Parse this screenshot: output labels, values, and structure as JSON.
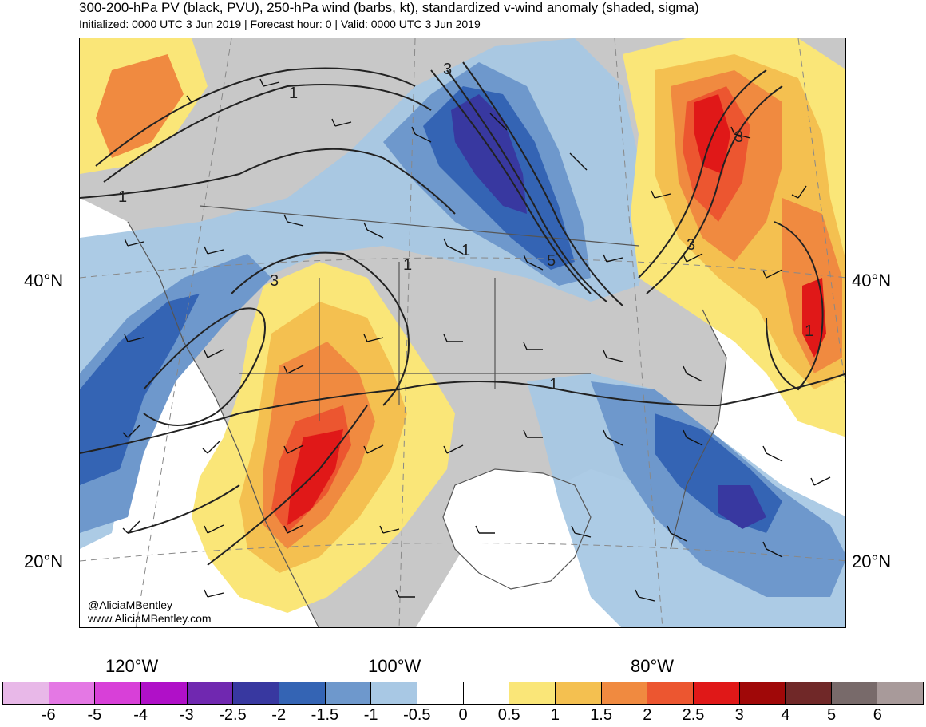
{
  "header": {
    "title": "300-200-hPa PV (black, PVU), 250-hPa wind (barbs, kt), standardized v-wind anomaly (shaded, sigma)",
    "subtitle": "Initialized: 0000 UTC 3 Jun 2019 | Forecast hour: 0 | Valid: 0000 UTC 3 Jun 2019"
  },
  "map": {
    "lat_labels": [
      "40°N",
      "20°N"
    ],
    "lon_labels": [
      "120°W",
      "100°W",
      "80°W"
    ],
    "contour_labels": [
      "3",
      "1",
      "1",
      "3",
      "1",
      "5",
      "3",
      "1",
      "1",
      "1",
      "3"
    ],
    "credit_handle": "@AliciaMBentley",
    "credit_url": "www.AliciaMBentley.com"
  },
  "colorbar": {
    "labels": [
      "-6",
      "-5",
      "-4",
      "-3",
      "-2.5",
      "-2",
      "-1.5",
      "-1",
      "-0.5",
      "0",
      "0.5",
      "1",
      "1.5",
      "2",
      "2.5",
      "3",
      "4",
      "5",
      "6"
    ],
    "colors": [
      "#e8b8e8",
      "#e478e4",
      "#d840d8",
      "#b010c8",
      "#7028b0",
      "#3838a0",
      "#3464b4",
      "#6e98cc",
      "#a8c8e4",
      "#ffffff",
      "#ffffff",
      "#fae678",
      "#f4c050",
      "#f08a40",
      "#ec5630",
      "#e01818",
      "#a00808",
      "#702828",
      "#786a6a",
      "#a89a9a"
    ]
  }
}
